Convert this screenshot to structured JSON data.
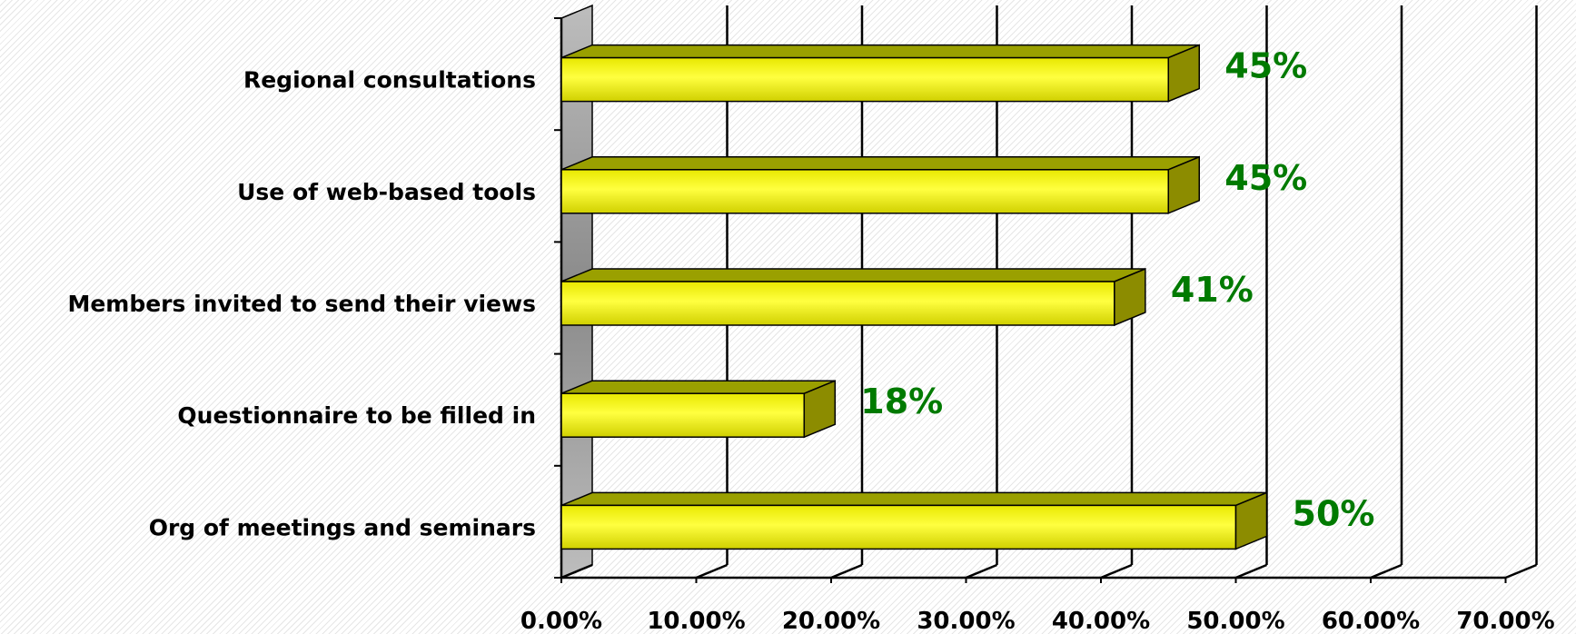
{
  "chart_data": {
    "type": "bar",
    "orientation": "horizontal",
    "style": "3d",
    "categories": [
      "Regional consultations",
      "Use of web-based tools",
      "Members invited to send their views",
      "Questionnaire to be filled in",
      "Org of meetings and seminars"
    ],
    "values": [
      45,
      45,
      41,
      18,
      50
    ],
    "data_labels": [
      "45%",
      "45%",
      "41%",
      "18%",
      "50%"
    ],
    "x_ticks": [
      "0.00%",
      "10.00%",
      "20.00%",
      "30.00%",
      "40.00%",
      "50.00%",
      "60.00%",
      "70.00%"
    ],
    "xlim": [
      0,
      70
    ],
    "title": "",
    "xlabel": "",
    "ylabel": "",
    "grid": true,
    "legend": "none",
    "colors": {
      "bar_front": "#ffff00",
      "bar_side": "#8c8c00",
      "bar_top": "#9aa000",
      "data_label": "#007a00",
      "gridline": "#000000",
      "wall": "#9a9a9a"
    }
  }
}
